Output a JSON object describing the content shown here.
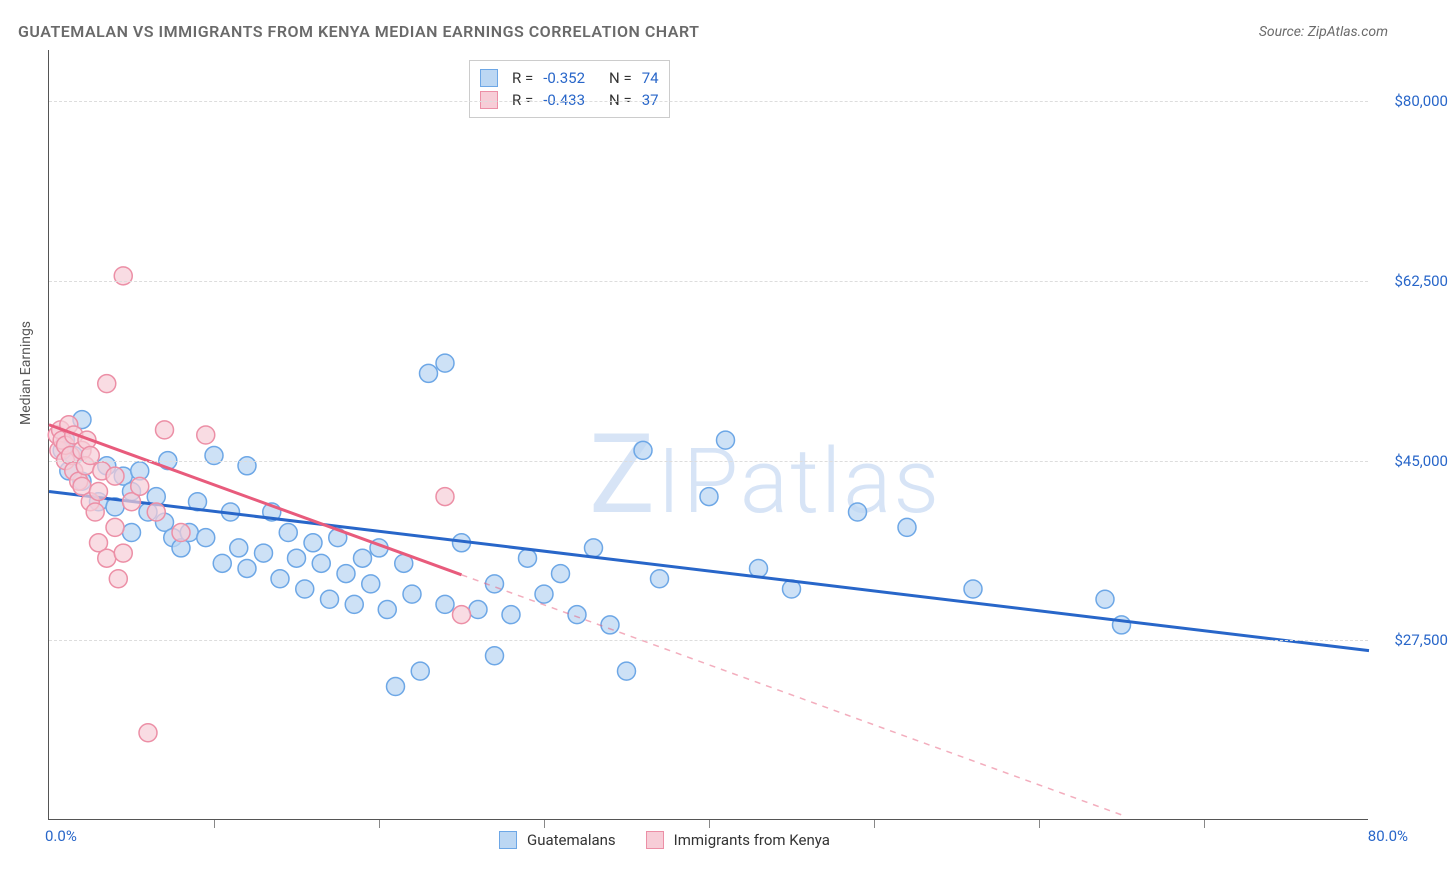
{
  "header": {
    "title": "GUATEMALAN VS IMMIGRANTS FROM KENYA MEDIAN EARNINGS CORRELATION CHART",
    "source": "Source: ZipAtlas.com"
  },
  "watermark": {
    "text_z": "Z",
    "text_ip": "IP",
    "text_atlas": "atlas"
  },
  "chart": {
    "type": "scatter-with-regression",
    "y_axis": {
      "label": "Median Earnings",
      "min": 10000,
      "max": 85000,
      "ticks": [
        27500,
        45000,
        62500,
        80000
      ],
      "tick_labels": [
        "$27,500",
        "$45,000",
        "$62,500",
        "$80,000"
      ],
      "grid_color": "#dddddd"
    },
    "x_axis": {
      "min": 0,
      "max": 80,
      "tick_positions": [
        10,
        20,
        30,
        40,
        50,
        60,
        70
      ],
      "min_label": "0.0%",
      "max_label": "80.0%"
    },
    "series": [
      {
        "name": "Guatemalans",
        "color_fill": "#bcd7f3",
        "color_stroke": "#6da7e6",
        "line_color": "#2866c9",
        "marker_radius": 9,
        "marker_opacity": 0.75,
        "R": "-0.352",
        "N": "74",
        "regression": {
          "x1": 0,
          "y1": 42000,
          "x2": 80,
          "y2": 26500,
          "solid_until_x": 80
        },
        "points": [
          [
            1,
            47000
          ],
          [
            1.5,
            45500
          ],
          [
            1.2,
            44000
          ],
          [
            2,
            43000
          ],
          [
            2,
            49000
          ],
          [
            0.8,
            46000
          ],
          [
            3,
            41000
          ],
          [
            3.5,
            44500
          ],
          [
            4,
            40500
          ],
          [
            4.5,
            43500
          ],
          [
            5,
            42000
          ],
          [
            5,
            38000
          ],
          [
            5.5,
            44000
          ],
          [
            6,
            40000
          ],
          [
            6.5,
            41500
          ],
          [
            7,
            39000
          ],
          [
            7.2,
            45000
          ],
          [
            7.5,
            37500
          ],
          [
            8,
            36500
          ],
          [
            8.5,
            38000
          ],
          [
            9,
            41000
          ],
          [
            9.5,
            37500
          ],
          [
            10,
            45500
          ],
          [
            10.5,
            35000
          ],
          [
            11,
            40000
          ],
          [
            11.5,
            36500
          ],
          [
            12,
            44500
          ],
          [
            12,
            34500
          ],
          [
            13,
            36000
          ],
          [
            13.5,
            40000
          ],
          [
            14,
            33500
          ],
          [
            14.5,
            38000
          ],
          [
            15,
            35500
          ],
          [
            15.5,
            32500
          ],
          [
            16,
            37000
          ],
          [
            16.5,
            35000
          ],
          [
            17,
            31500
          ],
          [
            17.5,
            37500
          ],
          [
            18,
            34000
          ],
          [
            18.5,
            31000
          ],
          [
            19,
            35500
          ],
          [
            19.5,
            33000
          ],
          [
            20,
            36500
          ],
          [
            20.5,
            30500
          ],
          [
            21,
            23000
          ],
          [
            21.5,
            35000
          ],
          [
            22,
            32000
          ],
          [
            22.5,
            24500
          ],
          [
            23,
            53500
          ],
          [
            24,
            54500
          ],
          [
            24,
            31000
          ],
          [
            25,
            37000
          ],
          [
            26,
            30500
          ],
          [
            27,
            33000
          ],
          [
            27,
            26000
          ],
          [
            28,
            30000
          ],
          [
            29,
            35500
          ],
          [
            30,
            32000
          ],
          [
            31,
            34000
          ],
          [
            32,
            30000
          ],
          [
            33,
            36500
          ],
          [
            34,
            29000
          ],
          [
            35,
            24500
          ],
          [
            36,
            46000
          ],
          [
            37,
            33500
          ],
          [
            40,
            41500
          ],
          [
            41,
            47000
          ],
          [
            43,
            34500
          ],
          [
            45,
            32500
          ],
          [
            49,
            40000
          ],
          [
            52,
            38500
          ],
          [
            56,
            32500
          ],
          [
            64,
            31500
          ],
          [
            65,
            29000
          ]
        ]
      },
      {
        "name": "Immigrants from Kenya",
        "color_fill": "#f7cdd7",
        "color_stroke": "#ec8fa6",
        "line_color": "#e85b7c",
        "marker_radius": 9,
        "marker_opacity": 0.7,
        "R": "-0.433",
        "N": "37",
        "regression": {
          "x1": 0,
          "y1": 48500,
          "x2": 65,
          "y2": 10500,
          "solid_until_x": 25
        },
        "points": [
          [
            0.5,
            47500
          ],
          [
            0.6,
            46000
          ],
          [
            0.7,
            48000
          ],
          [
            0.8,
            47000
          ],
          [
            1,
            45000
          ],
          [
            1,
            46500
          ],
          [
            1.2,
            48500
          ],
          [
            1.3,
            45500
          ],
          [
            1.5,
            44000
          ],
          [
            1.5,
            47500
          ],
          [
            1.8,
            43000
          ],
          [
            2,
            46000
          ],
          [
            2,
            42500
          ],
          [
            2.2,
            44500
          ],
          [
            2.3,
            47000
          ],
          [
            2.5,
            41000
          ],
          [
            2.5,
            45500
          ],
          [
            2.8,
            40000
          ],
          [
            3,
            42000
          ],
          [
            3,
            37000
          ],
          [
            3.2,
            44000
          ],
          [
            3.5,
            52500
          ],
          [
            3.5,
            35500
          ],
          [
            4,
            38500
          ],
          [
            4,
            43500
          ],
          [
            4.2,
            33500
          ],
          [
            4.5,
            63000
          ],
          [
            4.5,
            36000
          ],
          [
            5,
            41000
          ],
          [
            5.5,
            42500
          ],
          [
            6,
            18500
          ],
          [
            6.5,
            40000
          ],
          [
            7,
            48000
          ],
          [
            8,
            38000
          ],
          [
            9.5,
            47500
          ],
          [
            24,
            41500
          ],
          [
            25,
            30000
          ]
        ]
      }
    ]
  },
  "legend_bottom": [
    {
      "label": "Guatemalans",
      "fill": "#bcd7f3",
      "stroke": "#6da7e6"
    },
    {
      "label": "Immigrants from Kenya",
      "fill": "#f7cdd7",
      "stroke": "#ec8fa6"
    }
  ]
}
